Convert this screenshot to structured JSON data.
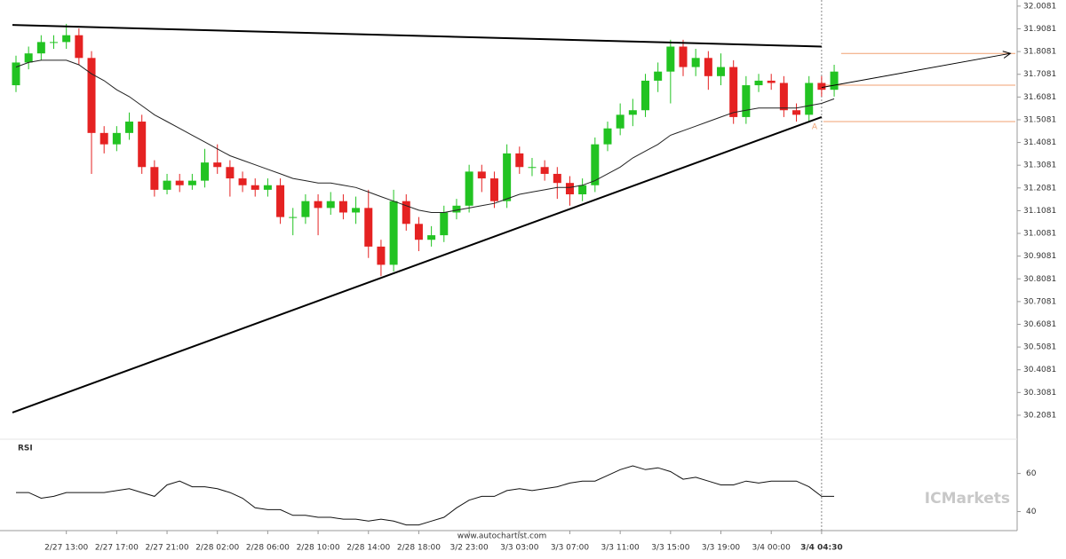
{
  "chart_data": {
    "type": "candlestick",
    "categories": [
      null,
      null,
      null,
      null,
      "2/27 13:00",
      null,
      null,
      null,
      "2/27 17:00",
      null,
      null,
      null,
      "2/27 21:00",
      null,
      null,
      null,
      "2/28 02:00",
      null,
      null,
      null,
      "2/28 06:00",
      null,
      null,
      null,
      "2/28 10:00",
      null,
      null,
      null,
      "2/28 14:00",
      null,
      null,
      null,
      "2/28 18:00",
      null,
      null,
      null,
      "3/2 23:00",
      null,
      null,
      null,
      "3/3 03:00",
      null,
      null,
      null,
      "3/3 07:00",
      null,
      null,
      null,
      "3/3 11:00",
      null,
      null,
      null,
      "3/3 15:00",
      null,
      null,
      null,
      "3/3 19:00",
      null,
      null,
      null,
      "3/4 00:00",
      null,
      null,
      null,
      "3/4 04:30",
      null
    ],
    "open": [
      31.66,
      31.76,
      31.8,
      31.85,
      31.85,
      31.88,
      31.78,
      31.45,
      31.4,
      31.45,
      31.5,
      31.3,
      31.2,
      31.24,
      31.22,
      31.24,
      31.32,
      31.3,
      31.25,
      31.22,
      31.2,
      31.22,
      31.08,
      31.08,
      31.15,
      31.12,
      31.15,
      31.1,
      31.12,
      30.95,
      30.87,
      31.15,
      31.05,
      30.98,
      31.0,
      31.1,
      31.13,
      31.28,
      31.25,
      31.15,
      31.36,
      31.3,
      31.3,
      31.27,
      31.23,
      31.18,
      31.22,
      31.4,
      31.47,
      31.53,
      31.55,
      31.68,
      31.72,
      31.83,
      31.74,
      31.78,
      31.7,
      31.74,
      31.52,
      31.66,
      31.68,
      31.67,
      31.55,
      31.53,
      31.67,
      31.64
    ],
    "high": [
      31.79,
      31.83,
      31.88,
      31.88,
      31.93,
      31.91,
      31.81,
      31.48,
      31.48,
      31.54,
      31.53,
      31.33,
      31.27,
      31.27,
      31.27,
      31.38,
      31.4,
      31.33,
      31.28,
      31.25,
      31.25,
      31.25,
      31.12,
      31.18,
      31.18,
      31.19,
      31.18,
      31.17,
      31.2,
      30.98,
      31.2,
      31.18,
      31.08,
      31.04,
      31.13,
      31.16,
      31.31,
      31.31,
      31.28,
      31.4,
      31.39,
      31.34,
      31.33,
      31.3,
      31.26,
      31.25,
      31.43,
      31.5,
      31.58,
      31.6,
      31.71,
      31.76,
      31.86,
      31.86,
      31.82,
      31.81,
      31.8,
      31.77,
      31.7,
      31.71,
      31.71,
      31.7,
      31.58,
      31.7,
      31.7,
      31.75
    ],
    "low": [
      31.63,
      31.73,
      31.77,
      31.82,
      31.82,
      31.75,
      31.27,
      31.36,
      31.37,
      31.42,
      31.27,
      31.17,
      31.18,
      31.19,
      31.2,
      31.21,
      31.27,
      31.17,
      31.19,
      31.17,
      31.17,
      31.05,
      31.0,
      31.05,
      31.0,
      31.09,
      31.07,
      31.05,
      30.9,
      30.82,
      30.84,
      31.02,
      30.93,
      30.95,
      30.97,
      31.07,
      31.1,
      31.19,
      31.12,
      31.12,
      31.27,
      31.26,
      31.24,
      31.16,
      31.13,
      31.15,
      31.19,
      31.37,
      31.44,
      31.48,
      31.52,
      31.63,
      31.58,
      31.7,
      31.7,
      31.64,
      31.66,
      31.49,
      31.49,
      31.63,
      31.64,
      31.52,
      31.5,
      31.5,
      31.61,
      31.61
    ],
    "close": [
      31.76,
      31.8,
      31.85,
      31.85,
      31.88,
      31.78,
      31.45,
      31.4,
      31.45,
      31.5,
      31.3,
      31.2,
      31.24,
      31.22,
      31.24,
      31.32,
      31.3,
      31.25,
      31.22,
      31.2,
      31.22,
      31.08,
      31.08,
      31.15,
      31.12,
      31.15,
      31.1,
      31.12,
      30.95,
      30.87,
      31.15,
      31.05,
      30.98,
      31.0,
      31.1,
      31.13,
      31.28,
      31.25,
      31.15,
      31.36,
      31.3,
      31.3,
      31.27,
      31.23,
      31.18,
      31.22,
      31.4,
      31.47,
      31.53,
      31.55,
      31.68,
      31.72,
      31.83,
      31.74,
      31.78,
      31.7,
      31.74,
      31.52,
      31.66,
      31.68,
      31.67,
      31.55,
      31.53,
      31.67,
      31.64,
      31.72
    ],
    "up_color": "#22c322",
    "down_color": "#e52222",
    "moving_average": [
      31.74,
      31.76,
      31.77,
      31.77,
      31.77,
      31.75,
      31.71,
      31.68,
      31.64,
      31.61,
      31.57,
      31.53,
      31.5,
      31.47,
      31.44,
      31.41,
      31.38,
      31.35,
      31.33,
      31.31,
      31.29,
      31.27,
      31.25,
      31.24,
      31.23,
      31.23,
      31.22,
      31.21,
      31.19,
      31.17,
      31.15,
      31.13,
      31.11,
      31.1,
      31.1,
      31.11,
      31.12,
      31.13,
      31.14,
      31.16,
      31.18,
      31.19,
      31.2,
      31.21,
      31.21,
      31.22,
      31.24,
      31.27,
      31.3,
      31.34,
      31.37,
      31.4,
      31.44,
      31.46,
      31.48,
      31.5,
      31.52,
      31.54,
      31.55,
      31.56,
      31.56,
      31.56,
      31.56,
      31.57,
      31.58,
      31.6
    ],
    "ylim": [
      30.122,
      32.035
    ],
    "yticks": [
      30.2081,
      30.3081,
      30.4081,
      30.5081,
      30.6081,
      30.7081,
      30.8081,
      30.9081,
      31.0081,
      31.1081,
      31.2081,
      31.3081,
      31.4081,
      31.5081,
      31.6081,
      31.7081,
      31.8081,
      31.9081,
      32.0081
    ],
    "trendlines": [
      {
        "x": [
          0,
          64
        ],
        "y": [
          31.925,
          31.83
        ]
      },
      {
        "x": [
          0,
          64
        ],
        "y": [
          30.22,
          31.52
        ]
      }
    ],
    "projection": {
      "x": [
        64,
        79
      ],
      "y": [
        31.65,
        31.8
      ]
    },
    "levels": [
      31.8,
      31.66,
      31.5
    ],
    "pattern_label": "A",
    "current_index": 64,
    "rsi": {
      "title": "RSI",
      "ylim": [
        30,
        78
      ],
      "yticks": [
        40,
        60
      ],
      "values": [
        50,
        50,
        47,
        48,
        50,
        50,
        50,
        50,
        51,
        52,
        50,
        48,
        54,
        56,
        53,
        53,
        52,
        50,
        47,
        42,
        41,
        41,
        38,
        38,
        37,
        37,
        36,
        36,
        35,
        36,
        35,
        33,
        33,
        35,
        37,
        42,
        46,
        48,
        48,
        51,
        52,
        51,
        52,
        53,
        55,
        56,
        56,
        59,
        62,
        64,
        62,
        63,
        61,
        57,
        58,
        56,
        54,
        54,
        56,
        55,
        56,
        56,
        56,
        53,
        48,
        48
      ]
    },
    "source": "www.autochartist.com",
    "logo": "ICMarkets"
  }
}
